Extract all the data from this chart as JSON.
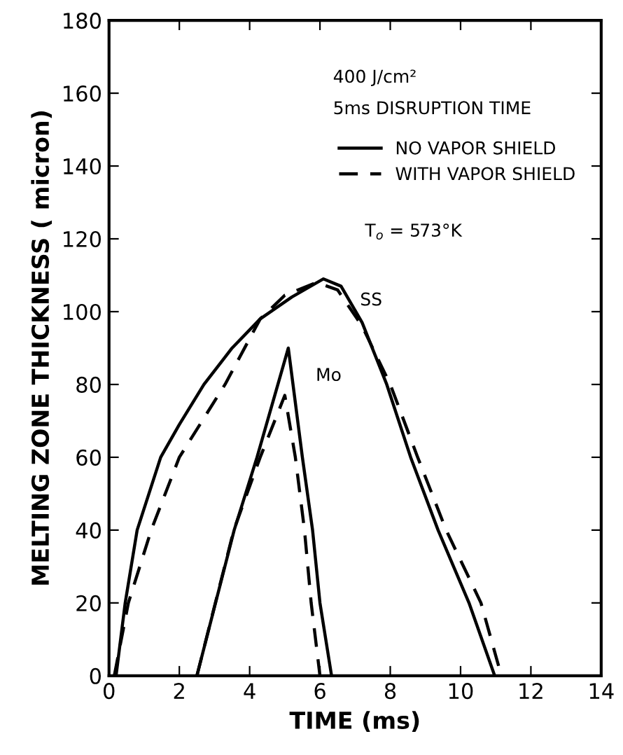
{
  "chart_data": {
    "type": "line",
    "xlabel": "TIME (ms)",
    "ylabel": "MELTING ZONE THICKNESS ( micron)",
    "xlim": [
      0,
      14
    ],
    "xticks": [
      0,
      2,
      4,
      6,
      8,
      10,
      12,
      14
    ],
    "ylim": [
      0,
      180
    ],
    "yticks": [
      0,
      20,
      40,
      60,
      80,
      100,
      120,
      140,
      160,
      180
    ],
    "grid": false,
    "legend": "top right",
    "marker": "none",
    "series": [
      {
        "name": "NO VAPOR SHIELD",
        "color": "#000000",
        "line_style": "solid",
        "x": [
          0.2,
          0.46,
          0.8,
          1.47,
          2.0,
          2.7,
          3.5,
          4.3,
          5.2,
          6.1,
          6.6,
          7.2,
          7.9,
          8.58,
          9.36,
          10.24,
          10.97
        ],
        "values": [
          0,
          20,
          40,
          60,
          69,
          80,
          90,
          98,
          104,
          109,
          107,
          97,
          80,
          60,
          40,
          20,
          0
        ]
      },
      {
        "name": "WITH VAPOR SHIELD",
        "color": "#000000",
        "line_style": "dashed",
        "x": [
          0.15,
          0.55,
          1.2,
          2.0,
          3.3,
          4.3,
          5.0,
          5.9,
          6.5,
          7.2,
          8.0,
          8.78,
          9.59,
          10.58,
          11.16
        ],
        "values": [
          0,
          20,
          40,
          60,
          80,
          98,
          104.5,
          108,
          106,
          96,
          80,
          60,
          40,
          20,
          0
        ]
      },
      {
        "color": "#000000",
        "line_style": "solid",
        "x": [
          2.5,
          3.56,
          4.21,
          5.1,
          5.5,
          5.79,
          6.0,
          6.33
        ],
        "values": [
          0,
          40,
          60,
          90,
          60,
          40,
          20,
          0
        ]
      },
      {
        "color": "#000000",
        "line_style": "dashed",
        "x": [
          2.5,
          3.55,
          4.3,
          5.0,
          5.3,
          5.56,
          5.75,
          6.0
        ],
        "values": [
          0,
          40,
          60,
          77,
          60,
          40,
          20,
          0
        ]
      }
    ],
    "annotations": [
      "400 J/cm²",
      "5ms DISRUPTION TIME",
      "T$_{o}$ = 573°K",
      "SS",
      "Mo"
    ]
  }
}
